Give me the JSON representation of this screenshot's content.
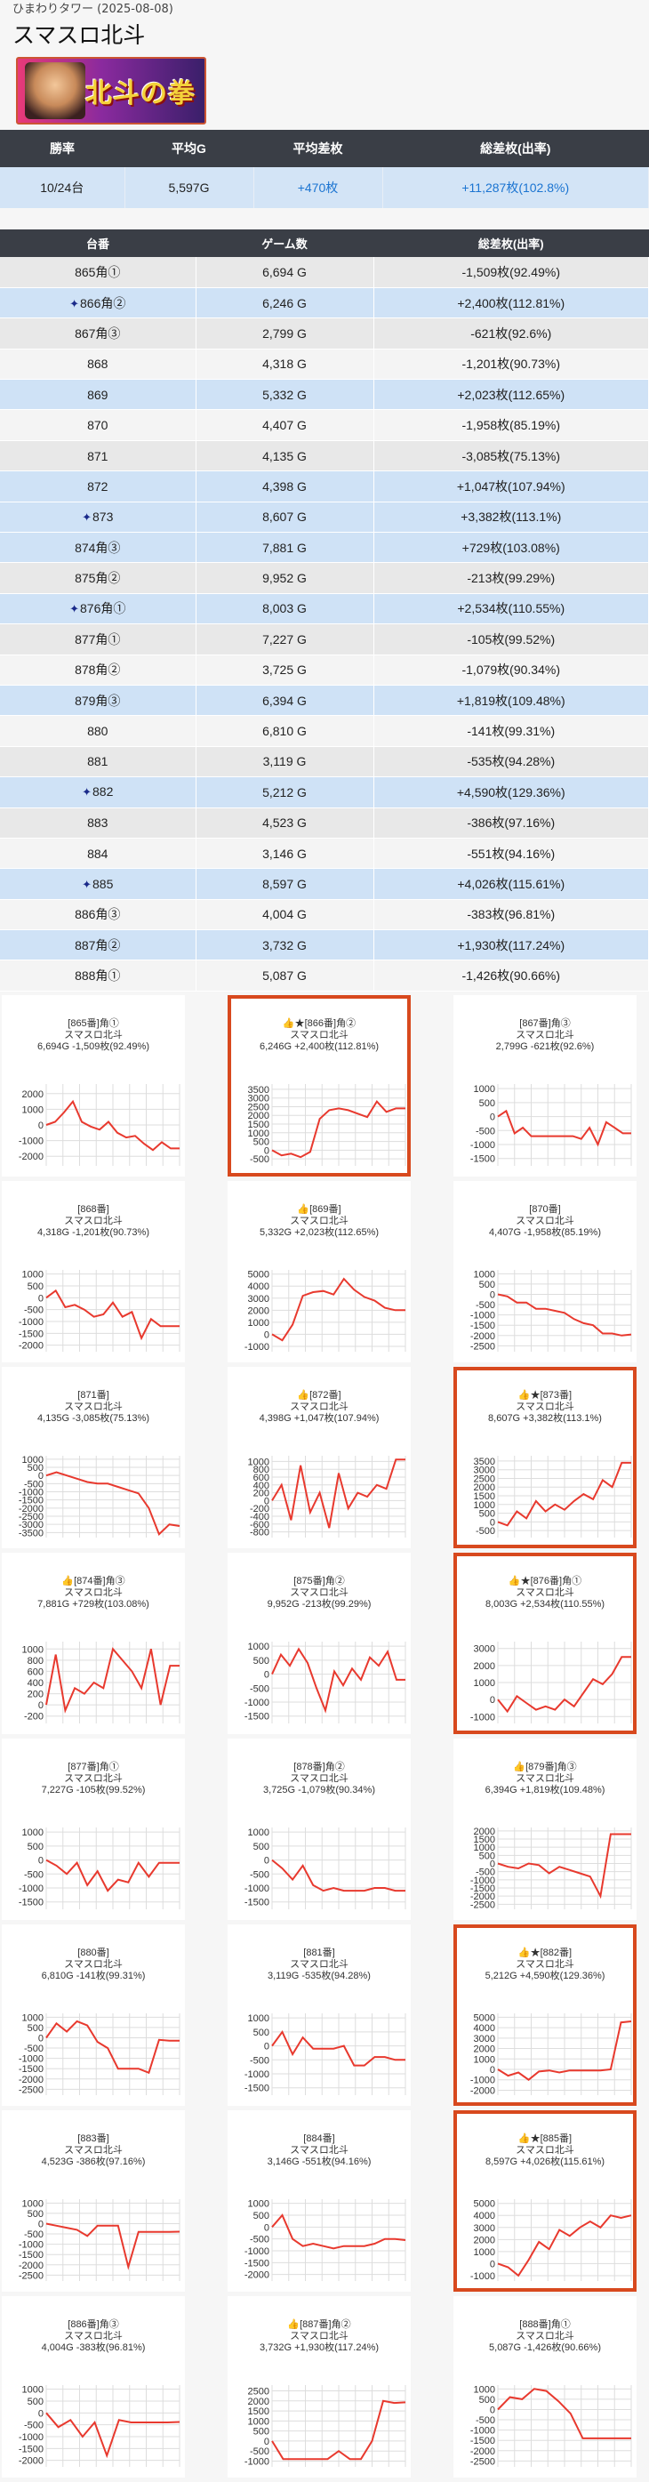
{
  "header": {
    "store": "ひまわりタワー",
    "date": "(2025-08-08)",
    "title": "スマスロ北斗",
    "banner_logo": "北斗の拳"
  },
  "summary": {
    "headers": [
      "勝率",
      "平均G",
      "平均差枚",
      "総差枚(出率)"
    ],
    "values": [
      "10/24台",
      "5,597G",
      "+470枚",
      "+11,287枚(102.8%)"
    ]
  },
  "table": {
    "headers": [
      "台番",
      "ゲーム数",
      "総差枚(出率)"
    ],
    "rows": [
      {
        "no": "865角①",
        "games": "6,694 G",
        "diff": "-1,509枚(92.49%)",
        "win": false,
        "star": false
      },
      {
        "no": "866角②",
        "games": "6,246 G",
        "diff": "+2,400枚(112.81%)",
        "win": true,
        "star": true
      },
      {
        "no": "867角③",
        "games": "2,799 G",
        "diff": "-621枚(92.6%)",
        "win": false,
        "star": false
      },
      {
        "no": "868",
        "games": "4,318 G",
        "diff": "-1,201枚(90.73%)",
        "win": false,
        "star": false
      },
      {
        "no": "869",
        "games": "5,332 G",
        "diff": "+2,023枚(112.65%)",
        "win": true,
        "star": false
      },
      {
        "no": "870",
        "games": "4,407 G",
        "diff": "-1,958枚(85.19%)",
        "win": false,
        "star": false
      },
      {
        "no": "871",
        "games": "4,135 G",
        "diff": "-3,085枚(75.13%)",
        "win": false,
        "star": false
      },
      {
        "no": "872",
        "games": "4,398 G",
        "diff": "+1,047枚(107.94%)",
        "win": true,
        "star": false
      },
      {
        "no": "873",
        "games": "8,607 G",
        "diff": "+3,382枚(113.1%)",
        "win": true,
        "star": true
      },
      {
        "no": "874角③",
        "games": "7,881 G",
        "diff": "+729枚(103.08%)",
        "win": true,
        "star": false
      },
      {
        "no": "875角②",
        "games": "9,952 G",
        "diff": "-213枚(99.29%)",
        "win": false,
        "star": false
      },
      {
        "no": "876角①",
        "games": "8,003 G",
        "diff": "+2,534枚(110.55%)",
        "win": true,
        "star": true
      },
      {
        "no": "877角①",
        "games": "7,227 G",
        "diff": "-105枚(99.52%)",
        "win": false,
        "star": false
      },
      {
        "no": "878角②",
        "games": "3,725 G",
        "diff": "-1,079枚(90.34%)",
        "win": false,
        "star": false
      },
      {
        "no": "879角③",
        "games": "6,394 G",
        "diff": "+1,819枚(109.48%)",
        "win": true,
        "star": false
      },
      {
        "no": "880",
        "games": "6,810 G",
        "diff": "-141枚(99.31%)",
        "win": false,
        "star": false
      },
      {
        "no": "881",
        "games": "3,119 G",
        "diff": "-535枚(94.28%)",
        "win": false,
        "star": false
      },
      {
        "no": "882",
        "games": "5,212 G",
        "diff": "+4,590枚(129.36%)",
        "win": true,
        "star": true
      },
      {
        "no": "883",
        "games": "4,523 G",
        "diff": "-386枚(97.16%)",
        "win": false,
        "star": false
      },
      {
        "no": "884",
        "games": "3,146 G",
        "diff": "-551枚(94.16%)",
        "win": false,
        "star": false
      },
      {
        "no": "885",
        "games": "8,597 G",
        "diff": "+4,026枚(115.61%)",
        "win": true,
        "star": true
      },
      {
        "no": "886角③",
        "games": "4,004 G",
        "diff": "-383枚(96.81%)",
        "win": false,
        "star": false
      },
      {
        "no": "887角②",
        "games": "3,732 G",
        "diff": "+1,930枚(117.24%)",
        "win": true,
        "star": false
      },
      {
        "no": "888角①",
        "games": "5,087 G",
        "diff": "-1,426枚(90.66%)",
        "win": false,
        "star": false
      }
    ]
  },
  "cards": [
    {
      "l1": "[865番]角①",
      "l2": "スマスロ北斗",
      "l3": "6,694G -1,509枚(92.49%)",
      "hl": false,
      "ticks": [
        "2000",
        "1000",
        "0",
        "-1000",
        "-2000"
      ],
      "min": -2500,
      "max": 2500,
      "pts": [
        0,
        200,
        800,
        1500,
        200,
        -100,
        -300,
        200,
        -500,
        -800,
        -700,
        -1200,
        -1600,
        -1100,
        -1500,
        -1500
      ]
    },
    {
      "l1": "👍★[866番]角②",
      "l2": "スマスロ北斗",
      "l3": "6,246G +2,400枚(112.81%)",
      "hl": true,
      "ticks": [
        "3500",
        "3000",
        "2500",
        "2000",
        "1500",
        "1000",
        "500",
        "0",
        "-500"
      ],
      "min": -800,
      "max": 3700,
      "pts": [
        0,
        -300,
        -200,
        -400,
        -100,
        1800,
        2300,
        2400,
        2300,
        2100,
        1900,
        2800,
        2200,
        2400,
        2400
      ]
    },
    {
      "l1": "[867番]角③",
      "l2": "スマスロ北斗",
      "l3": "2,799G -621枚(92.6%)",
      "hl": false,
      "ticks": [
        "1000",
        "500",
        "0",
        "-500",
        "-1000",
        "-1500"
      ],
      "min": -1700,
      "max": 1100,
      "pts": [
        0,
        200,
        -600,
        -400,
        -700,
        -700,
        -700,
        -700,
        -700,
        -700,
        -800,
        -400,
        -1000,
        -200,
        -400,
        -600,
        -600
      ]
    },
    {
      "l1": "[868番]",
      "l2": "スマスロ北斗",
      "l3": "4,318G -1,201枚(90.73%)",
      "hl": false,
      "ticks": [
        "1000",
        "500",
        "0",
        "-500",
        "-1000",
        "-1500",
        "-2000"
      ],
      "min": -2200,
      "max": 1100,
      "pts": [
        0,
        300,
        -400,
        -300,
        -500,
        -800,
        -700,
        -200,
        -800,
        -600,
        -1700,
        -900,
        -1200,
        -1200,
        -1200
      ]
    },
    {
      "l1": "👍[869番]",
      "l2": "スマスロ北斗",
      "l3": "5,332G +2,023枚(112.65%)",
      "hl": false,
      "ticks": [
        "5000",
        "4000",
        "3000",
        "2000",
        "1000",
        "0",
        "-1000"
      ],
      "min": -1300,
      "max": 5200,
      "pts": [
        0,
        -500,
        800,
        3200,
        3500,
        3600,
        3300,
        4600,
        3700,
        3100,
        2800,
        2200,
        2000,
        2000
      ]
    },
    {
      "l1": "[870番]",
      "l2": "スマスロ北斗",
      "l3": "4,407G -1,958枚(85.19%)",
      "hl": false,
      "ticks": [
        "1000",
        "500",
        "0",
        "-500",
        "-1000",
        "-1500",
        "-2000",
        "-2500"
      ],
      "min": -2700,
      "max": 1100,
      "pts": [
        0,
        -100,
        -400,
        -400,
        -700,
        -700,
        -800,
        -900,
        -1200,
        -1400,
        -1500,
        -1900,
        -1900,
        -2000,
        -1950
      ]
    },
    {
      "l1": "[871番]",
      "l2": "スマスロ北斗",
      "l3": "4,135G -3,085枚(75.13%)",
      "hl": false,
      "ticks": [
        "1000",
        "500",
        "0",
        "-500",
        "-1000",
        "-1500",
        "-2000",
        "-2500",
        "-3000",
        "-3500"
      ],
      "min": -3700,
      "max": 1100,
      "pts": [
        0,
        200,
        0,
        -200,
        -400,
        -500,
        -500,
        -700,
        -900,
        -1100,
        -2000,
        -3600,
        -3000,
        -3100
      ]
    },
    {
      "l1": "👍[872番]",
      "l2": "スマスロ北斗",
      "l3": "4,398G +1,047枚(107.94%)",
      "hl": false,
      "ticks": [
        "1000",
        "800",
        "600",
        "400",
        "200",
        "0",
        "-200",
        "-400",
        "-600",
        "-800"
      ],
      "min": -900,
      "max": 1100,
      "pts": [
        0,
        400,
        -500,
        900,
        -300,
        200,
        -700,
        700,
        -200,
        200,
        100,
        400,
        300,
        1050,
        1050
      ]
    },
    {
      "l1": "👍★[873番]",
      "l2": "スマスロ北斗",
      "l3": "8,607G +3,382枚(113.1%)",
      "hl": true,
      "ticks": [
        "3500",
        "3000",
        "2500",
        "2000",
        "1500",
        "1000",
        "500",
        "0",
        "-500"
      ],
      "min": -800,
      "max": 3700,
      "pts": [
        0,
        -200,
        600,
        200,
        1200,
        600,
        1000,
        700,
        1200,
        1600,
        1300,
        2400,
        2000,
        3400,
        3400
      ]
    },
    {
      "l1": "👍[874番]角③",
      "l2": "スマスロ北斗",
      "l3": "7,881G +729枚(103.08%)",
      "hl": false,
      "ticks": [
        "1000",
        "800",
        "600",
        "400",
        "200",
        "0",
        "-200"
      ],
      "min": -300,
      "max": 1100,
      "pts": [
        0,
        900,
        -100,
        300,
        200,
        400,
        300,
        1000,
        800,
        600,
        300,
        1000,
        0,
        700,
        700
      ]
    },
    {
      "l1": "[875番]角②",
      "l2": "スマスロ北斗",
      "l3": "9,952G -213枚(99.29%)",
      "hl": false,
      "ticks": [
        "1000",
        "500",
        "0",
        "-500",
        "-1000",
        "-1500"
      ],
      "min": -1700,
      "max": 1100,
      "pts": [
        0,
        700,
        300,
        900,
        400,
        -500,
        -1300,
        100,
        -400,
        200,
        -200,
        600,
        300,
        800,
        -200,
        -200
      ]
    },
    {
      "l1": "👍★[876番]角①",
      "l2": "スマスロ北斗",
      "l3": "8,003G +2,534枚(110.55%)",
      "hl": true,
      "ticks": [
        "3000",
        "2000",
        "1000",
        "0",
        "-1000"
      ],
      "min": -1300,
      "max": 3300,
      "pts": [
        0,
        -700,
        200,
        -200,
        -600,
        -400,
        -600,
        0,
        -400,
        400,
        1200,
        900,
        1500,
        2500,
        2500
      ]
    },
    {
      "l1": "[877番]角①",
      "l2": "スマスロ北斗",
      "l3": "7,227G -105枚(99.52%)",
      "hl": false,
      "ticks": [
        "1000",
        "500",
        "0",
        "-500",
        "-1000",
        "-1500"
      ],
      "min": -1700,
      "max": 1100,
      "pts": [
        0,
        -200,
        -500,
        -100,
        -900,
        -400,
        -1100,
        -700,
        -800,
        -100,
        -600,
        -100,
        -100,
        -100
      ]
    },
    {
      "l1": "[878番]角②",
      "l2": "スマスロ北斗",
      "l3": "3,725G -1,079枚(90.34%)",
      "hl": false,
      "ticks": [
        "1000",
        "500",
        "0",
        "-500",
        "-1000",
        "-1500"
      ],
      "min": -1700,
      "max": 1100,
      "pts": [
        0,
        -300,
        -700,
        -200,
        -900,
        -1100,
        -1000,
        -1100,
        -1100,
        -1100,
        -1000,
        -1000,
        -1100,
        -1100
      ]
    },
    {
      "l1": "👍[879番]角③",
      "l2": "スマスロ北斗",
      "l3": "6,394G +1,819枚(109.48%)",
      "hl": false,
      "ticks": [
        "2000",
        "1500",
        "1000",
        "500",
        "0",
        "-500",
        "-1000",
        "-1500",
        "-2000",
        "-2500"
      ],
      "min": -2700,
      "max": 2100,
      "pts": [
        0,
        -200,
        -300,
        0,
        -100,
        -600,
        -200,
        -400,
        -600,
        -800,
        -2000,
        1800,
        1800,
        1800
      ]
    },
    {
      "l1": "[880番]",
      "l2": "スマスロ北斗",
      "l3": "6,810G -141枚(99.31%)",
      "hl": false,
      "ticks": [
        "1000",
        "500",
        "0",
        "-500",
        "-1000",
        "-1500",
        "-2000",
        "-2500"
      ],
      "min": -2700,
      "max": 1100,
      "pts": [
        0,
        700,
        300,
        800,
        600,
        -200,
        -500,
        -1500,
        -1500,
        -1500,
        -1700,
        -100,
        -140,
        -140
      ]
    },
    {
      "l1": "[881番]",
      "l2": "スマスロ北斗",
      "l3": "3,119G -535枚(94.28%)",
      "hl": false,
      "ticks": [
        "1000",
        "500",
        "0",
        "-500",
        "-1000",
        "-1500"
      ],
      "min": -1700,
      "max": 1100,
      "pts": [
        0,
        500,
        -300,
        300,
        -100,
        -100,
        -100,
        0,
        -700,
        -700,
        -400,
        -400,
        -500,
        -500
      ]
    },
    {
      "l1": "👍★[882番]",
      "l2": "スマスロ北斗",
      "l3": "5,212G +4,590枚(129.36%)",
      "hl": true,
      "ticks": [
        "5000",
        "4000",
        "3000",
        "2000",
        "1000",
        "0",
        "-1000",
        "-2000"
      ],
      "min": -2300,
      "max": 5200,
      "pts": [
        0,
        -600,
        -300,
        -1000,
        -200,
        -100,
        -300,
        -100,
        -100,
        -100,
        -100,
        0,
        4500,
        4600
      ]
    },
    {
      "l1": "[883番]",
      "l2": "スマスロ北斗",
      "l3": "4,523G -386枚(97.16%)",
      "hl": false,
      "ticks": [
        "1000",
        "500",
        "0",
        "-500",
        "-1000",
        "-1500",
        "-2000",
        "-2500"
      ],
      "min": -2700,
      "max": 1100,
      "pts": [
        0,
        -100,
        -200,
        -300,
        -600,
        -100,
        -100,
        -100,
        -2100,
        -400,
        -400,
        -400,
        -400,
        -390
      ]
    },
    {
      "l1": "[884番]",
      "l2": "スマスロ北斗",
      "l3": "3,146G -551枚(94.16%)",
      "hl": false,
      "ticks": [
        "1000",
        "500",
        "0",
        "-500",
        "-1000",
        "-1500",
        "-2000"
      ],
      "min": -2200,
      "max": 1100,
      "pts": [
        0,
        500,
        -500,
        -800,
        -700,
        -800,
        -900,
        -800,
        -800,
        -800,
        -700,
        -500,
        -500,
        -550
      ]
    },
    {
      "l1": "👍★[885番]",
      "l2": "スマスロ北斗",
      "l3": "8,597G +4,026枚(115.61%)",
      "hl": true,
      "ticks": [
        "5000",
        "4000",
        "3000",
        "2000",
        "1000",
        "0",
        "-1000"
      ],
      "min": -1300,
      "max": 5200,
      "pts": [
        0,
        -300,
        -1000,
        300,
        1800,
        1200,
        2800,
        2300,
        3000,
        3500,
        3000,
        4000,
        3800,
        4000
      ]
    },
    {
      "l1": "[886番]角③",
      "l2": "スマスロ北斗",
      "l3": "4,004G -383枚(96.81%)",
      "hl": false,
      "ticks": [
        "1000",
        "500",
        "0",
        "-500",
        "-1000",
        "-1500",
        "-2000"
      ],
      "min": -2200,
      "max": 1100,
      "pts": [
        0,
        -600,
        -300,
        -1000,
        -400,
        -1800,
        -300,
        -400,
        -400,
        -400,
        -400,
        -380
      ]
    },
    {
      "l1": "👍[887番]角②",
      "l2": "スマスロ北斗",
      "l3": "3,732G +1,930枚(117.24%)",
      "hl": false,
      "ticks": [
        "2500",
        "2000",
        "1500",
        "1000",
        "500",
        "0",
        "-500",
        "-1000"
      ],
      "min": -1200,
      "max": 2700,
      "pts": [
        0,
        -900,
        -900,
        -900,
        -900,
        -900,
        -500,
        -900,
        -900,
        0,
        2000,
        1900,
        1930
      ]
    },
    {
      "l1": "[888番]角①",
      "l2": "スマスロ北斗",
      "l3": "5,087G -1,426枚(90.66%)",
      "hl": false,
      "ticks": [
        "1000",
        "500",
        "0",
        "-500",
        "-1000",
        "-1500",
        "-2000",
        "-2500"
      ],
      "min": -2700,
      "max": 1100,
      "pts": [
        0,
        600,
        500,
        1000,
        900,
        400,
        -200,
        -1400,
        -1400,
        -1400,
        -1400,
        -1400
      ]
    }
  ],
  "colors": {
    "header_bg": "#3a3e46",
    "win_bg": "#cfe2f6",
    "highlight": "#d8491e",
    "line": "#e8392e",
    "accent_blue": "#1b74d1"
  }
}
